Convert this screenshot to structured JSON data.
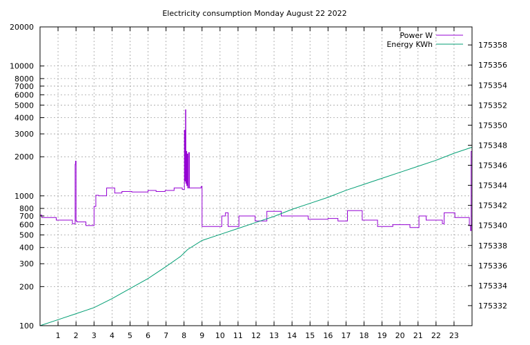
{
  "chart_data": {
    "type": "line",
    "title": "Electricity consumption Monday August 22 2022",
    "xlabel": "",
    "ylabel": "",
    "x_ticks": [
      1,
      2,
      3,
      4,
      5,
      6,
      7,
      8,
      9,
      10,
      11,
      12,
      13,
      14,
      15,
      16,
      17,
      18,
      19,
      20,
      21,
      22,
      23
    ],
    "xlim": [
      0,
      24
    ],
    "y_left": {
      "scale": "log",
      "lim": [
        100,
        20000
      ],
      "ticks": [
        100,
        200,
        300,
        400,
        500,
        600,
        700,
        800,
        1000,
        2000,
        3000,
        4000,
        5000,
        6000,
        7000,
        8000,
        10000,
        20000
      ]
    },
    "y_right": {
      "scale": "linear",
      "lim": [
        175330.0,
        175359.8
      ],
      "ticks": [
        175332,
        175334,
        175336,
        175338,
        175340,
        175342,
        175344,
        175346,
        175348,
        175350,
        175352,
        175354,
        175356,
        175358
      ]
    },
    "grid": true,
    "legend_position": "top-right",
    "series": [
      {
        "name": "Power W",
        "axis": "left",
        "color": "#9400d3",
        "style": "steps",
        "x": [
          0,
          0.1,
          0.9,
          1.8,
          1.95,
          1.97,
          2.0,
          2.05,
          2.55,
          3.0,
          3.1,
          3.25,
          3.7,
          4.15,
          4.55,
          5.05,
          5.1,
          6.0,
          6.45,
          6.95,
          7.45,
          7.9,
          8.02,
          8.05,
          8.08,
          8.1,
          8.12,
          8.15,
          8.18,
          8.21,
          8.25,
          8.3,
          8.6,
          8.95,
          9.0,
          10.1,
          10.3,
          10.45,
          11.05,
          11.95,
          12.6,
          13.4,
          14.9,
          16.0,
          16.55,
          17.08,
          17.9,
          18.75,
          19.6,
          20.55,
          21.05,
          21.45,
          22.35,
          22.45,
          23.05,
          23.85,
          23.92,
          23.95,
          24.0
        ],
        "y": [
          710,
          680,
          650,
          610,
          1750,
          1850,
          640,
          630,
          590,
          830,
          1010,
          1000,
          1150,
          1050,
          1080,
          1080,
          1070,
          1100,
          1080,
          1100,
          1150,
          1120,
          3200,
          1300,
          4600,
          1250,
          2200,
          1200,
          2100,
          1150,
          2150,
          1150,
          1150,
          1180,
          580,
          700,
          740,
          580,
          700,
          640,
          760,
          700,
          660,
          670,
          640,
          770,
          650,
          580,
          600,
          570,
          700,
          650,
          610,
          740,
          680,
          590,
          540,
          2200,
          2200
        ]
      },
      {
        "name": "Energy KWh",
        "axis": "right",
        "color": "#009e73",
        "style": "line",
        "x": [
          0,
          1,
          2,
          3,
          4,
          5,
          6,
          7,
          7.8,
          8.2,
          9,
          10,
          11,
          12,
          13,
          14,
          15,
          16,
          17,
          18,
          19,
          20,
          21,
          22,
          23,
          24
        ],
        "y": [
          175330.0,
          175330.6,
          175331.2,
          175331.8,
          175332.7,
          175333.7,
          175334.7,
          175335.9,
          175336.9,
          175337.6,
          175338.5,
          175339.1,
          175339.7,
          175340.3,
          175340.9,
          175341.6,
          175342.2,
          175342.8,
          175343.5,
          175344.1,
          175344.7,
          175345.3,
          175345.9,
          175346.5,
          175347.2,
          175347.8
        ]
      }
    ]
  }
}
